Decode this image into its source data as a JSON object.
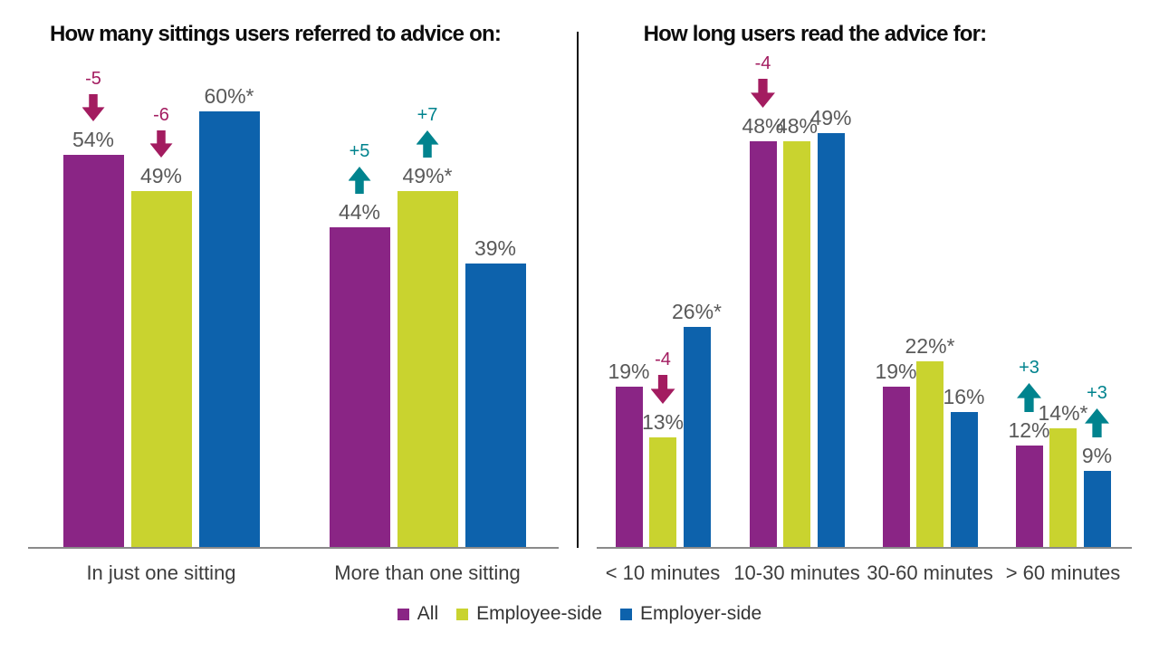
{
  "colors": {
    "all_series": "#8A2585",
    "employee_side_series": "#C9D32F",
    "employer_side_series": "#0D62AC",
    "decrease_arrow": "#A31C60",
    "increase_arrow": "#00838E",
    "data_label": "#595959",
    "axis_line": "#8A8A8A",
    "divider": "#000000"
  },
  "chart_data": [
    {
      "type": "bar",
      "title": "How many sittings users referred to advice on:",
      "categories": [
        "In just one sitting",
        "More than one sitting"
      ],
      "series": [
        {
          "name": "All",
          "color": "#8A2585",
          "values": [
            54,
            44
          ]
        },
        {
          "name": "Employee-side",
          "color": "#C9D32F",
          "values": [
            49,
            49
          ]
        },
        {
          "name": "Employer-side",
          "color": "#0D62AC",
          "values": [
            60,
            39
          ]
        }
      ],
      "data_labels": [
        [
          "54%",
          "49%",
          "60%*"
        ],
        [
          "44%",
          "49%*",
          "39%"
        ]
      ],
      "annotations": [
        {
          "category": 0,
          "series": 0,
          "text": "-5",
          "direction": "down"
        },
        {
          "category": 0,
          "series": 1,
          "text": "-6",
          "direction": "down"
        },
        {
          "category": 1,
          "series": 0,
          "text": "+5",
          "direction": "up"
        },
        {
          "category": 1,
          "series": 1,
          "text": "+7",
          "direction": "up"
        }
      ],
      "ylim": [
        0,
        60
      ],
      "grid": false,
      "legend_position": "bottom"
    },
    {
      "type": "bar",
      "title": "How long users read the advice for:",
      "categories": [
        "< 10 minutes",
        "10-30 minutes",
        "30-60 minutes",
        "> 60 minutes"
      ],
      "series": [
        {
          "name": "All",
          "color": "#8A2585",
          "values": [
            19,
            48,
            19,
            12
          ]
        },
        {
          "name": "Employee-side",
          "color": "#C9D32F",
          "values": [
            13,
            48,
            22,
            14
          ]
        },
        {
          "name": "Employer-side",
          "color": "#0D62AC",
          "values": [
            26,
            49,
            16,
            9
          ]
        }
      ],
      "data_labels": [
        [
          "19%",
          "13%",
          "26%*"
        ],
        [
          "48%",
          "48%",
          "49%"
        ],
        [
          "19%",
          "22%*",
          "16%"
        ],
        [
          "12%",
          "14%*",
          "9%"
        ]
      ],
      "annotations": [
        {
          "category": 0,
          "series": 1,
          "text": "-4",
          "direction": "down"
        },
        {
          "category": 1,
          "series": 0,
          "text": "-4",
          "direction": "down"
        },
        {
          "category": 3,
          "series": 0,
          "text": "+3",
          "direction": "up"
        },
        {
          "category": 3,
          "series": 2,
          "text": "+3",
          "direction": "up"
        }
      ],
      "ylim": [
        0,
        49
      ],
      "grid": false,
      "legend_position": "bottom"
    }
  ],
  "legend": {
    "items": [
      {
        "label": "All",
        "color": "#8A2585"
      },
      {
        "label": "Employee-side",
        "color": "#C9D32F"
      },
      {
        "label": "Employer-side",
        "color": "#0D62AC"
      }
    ]
  }
}
